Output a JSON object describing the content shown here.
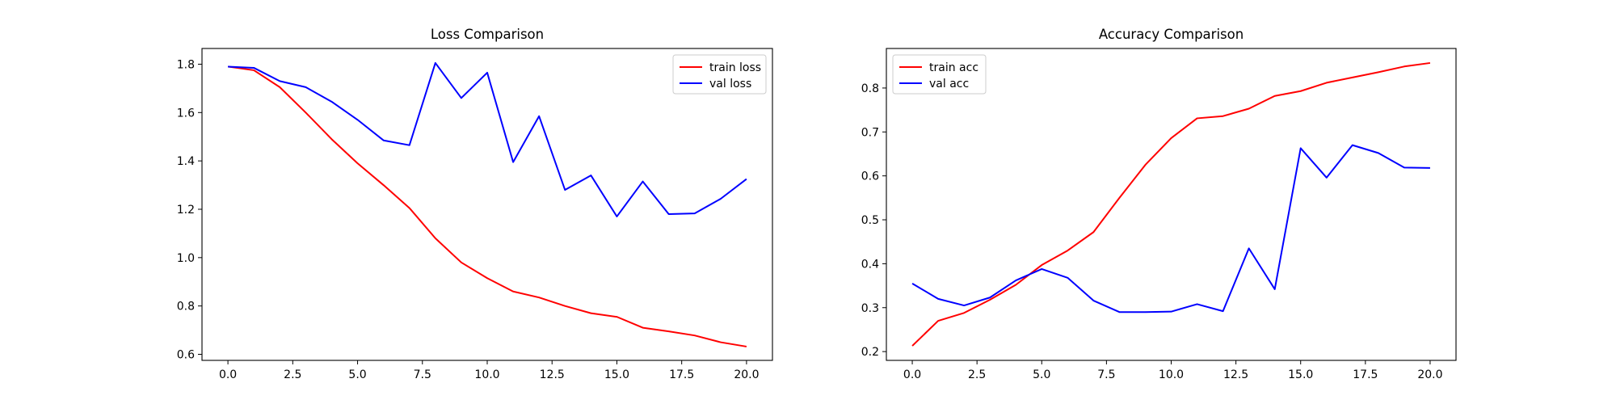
{
  "chart_data": [
    {
      "type": "line",
      "title": "Loss Comparison",
      "xlabel": "",
      "ylabel": "",
      "xlim": [
        -1,
        21
      ],
      "ylim": [
        0.575,
        1.865
      ],
      "xticks": [
        0.0,
        2.5,
        5.0,
        7.5,
        10.0,
        12.5,
        15.0,
        17.5,
        20.0
      ],
      "xtick_labels": [
        "0.0",
        "2.5",
        "5.0",
        "7.5",
        "10.0",
        "12.5",
        "15.0",
        "17.5",
        "20.0"
      ],
      "yticks": [
        0.6,
        0.8,
        1.0,
        1.2,
        1.4,
        1.6,
        1.8
      ],
      "ytick_labels": [
        "0.6",
        "0.8",
        "1.0",
        "1.2",
        "1.4",
        "1.6",
        "1.8"
      ],
      "grid": false,
      "legend": "top-right",
      "x": [
        0,
        1,
        2,
        3,
        4,
        5,
        6,
        7,
        8,
        9,
        10,
        11,
        12,
        13,
        14,
        15,
        16,
        17,
        18,
        19,
        20
      ],
      "series": [
        {
          "name": "train loss",
          "color": "#ff0000",
          "values": [
            1.79,
            1.775,
            1.705,
            1.6,
            1.49,
            1.39,
            1.3,
            1.205,
            1.08,
            0.98,
            0.915,
            0.86,
            0.835,
            0.8,
            0.77,
            0.755,
            0.71,
            0.695,
            0.678,
            0.65,
            0.632
          ]
        },
        {
          "name": "val loss",
          "color": "#0000ff",
          "values": [
            1.79,
            1.785,
            1.73,
            1.705,
            1.645,
            1.57,
            1.485,
            1.465,
            1.805,
            1.66,
            1.765,
            1.395,
            1.585,
            1.28,
            1.34,
            1.17,
            1.315,
            1.18,
            1.183,
            1.243,
            1.325
          ]
        }
      ]
    },
    {
      "type": "line",
      "title": "Accuracy Comparison",
      "xlabel": "",
      "ylabel": "",
      "xlim": [
        -1,
        21
      ],
      "ylim": [
        0.18,
        0.89
      ],
      "xticks": [
        0.0,
        2.5,
        5.0,
        7.5,
        10.0,
        12.5,
        15.0,
        17.5,
        20.0
      ],
      "xtick_labels": [
        "0.0",
        "2.5",
        "5.0",
        "7.5",
        "10.0",
        "12.5",
        "15.0",
        "17.5",
        "20.0"
      ],
      "yticks": [
        0.2,
        0.3,
        0.4,
        0.5,
        0.6,
        0.7,
        0.8
      ],
      "ytick_labels": [
        "0.2",
        "0.3",
        "0.4",
        "0.5",
        "0.6",
        "0.7",
        "0.8"
      ],
      "grid": false,
      "legend": "top-left",
      "x": [
        0,
        1,
        2,
        3,
        4,
        5,
        6,
        7,
        8,
        9,
        10,
        11,
        12,
        13,
        14,
        15,
        16,
        17,
        18,
        19,
        20
      ],
      "series": [
        {
          "name": "train acc",
          "color": "#ff0000",
          "values": [
            0.213,
            0.27,
            0.288,
            0.318,
            0.352,
            0.397,
            0.43,
            0.472,
            0.55,
            0.625,
            0.686,
            0.731,
            0.736,
            0.753,
            0.782,
            0.793,
            0.812,
            0.824,
            0.836,
            0.849,
            0.857
          ]
        },
        {
          "name": "val acc",
          "color": "#0000ff",
          "values": [
            0.355,
            0.32,
            0.305,
            0.323,
            0.362,
            0.388,
            0.368,
            0.316,
            0.29,
            0.29,
            0.291,
            0.308,
            0.292,
            0.435,
            0.342,
            0.663,
            0.596,
            0.67,
            0.652,
            0.619,
            0.618
          ]
        }
      ]
    }
  ]
}
